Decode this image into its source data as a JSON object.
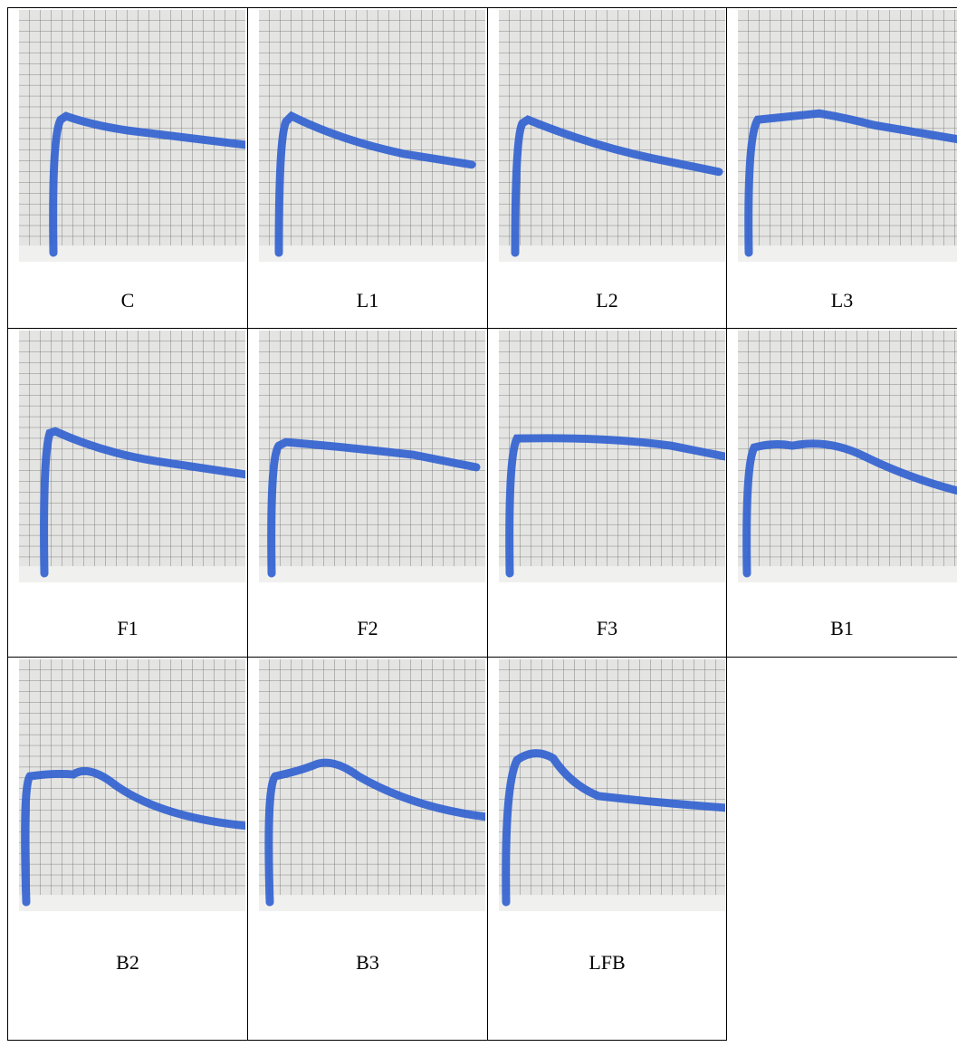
{
  "table": {
    "rows": [
      [
        "C",
        "L1",
        "L2",
        "L3"
      ],
      [
        "F1",
        "F2",
        "F3",
        "B1"
      ],
      [
        "B2",
        "B3",
        "LFB"
      ]
    ]
  }
}
